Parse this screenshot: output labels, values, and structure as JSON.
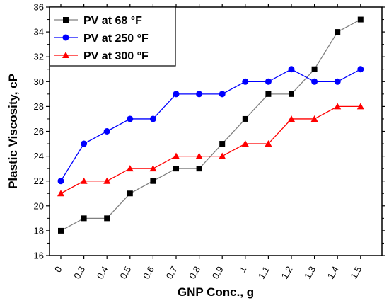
{
  "chart_data": {
    "type": "line",
    "title": "",
    "xlabel": "GNP Conc., g",
    "ylabel": "Plastic Viscosity, cP",
    "categories": [
      "0",
      "0.3",
      "0.4",
      "0.5",
      "0.6",
      "0.7",
      "0.8",
      "0.9",
      "1",
      "1.1",
      "1.2",
      "1.3",
      "1.4",
      "1.5"
    ],
    "ylim": [
      16,
      36
    ],
    "yticks": [
      16,
      18,
      20,
      22,
      24,
      26,
      28,
      30,
      32,
      34,
      36
    ],
    "legend_position": "top-left",
    "grid": false,
    "series": [
      {
        "name": "PV at 68 °F",
        "color": "#000000",
        "line_color": "#808080",
        "marker": "square",
        "values": [
          18,
          19,
          19,
          21,
          22,
          23,
          23,
          25,
          27,
          29,
          29,
          31,
          34,
          35
        ]
      },
      {
        "name": "PV at 250 °F",
        "color": "#0000ff",
        "line_color": "#0000ff",
        "marker": "circle",
        "values": [
          22,
          25,
          26,
          27,
          27,
          29,
          29,
          29,
          30,
          30,
          31,
          30,
          30,
          31
        ]
      },
      {
        "name": "PV at 300 °F",
        "color": "#ff0000",
        "line_color": "#ff0000",
        "marker": "triangle",
        "values": [
          21,
          22,
          22,
          23,
          23,
          24,
          24,
          24,
          25,
          25,
          27,
          27,
          28,
          28
        ]
      }
    ]
  }
}
